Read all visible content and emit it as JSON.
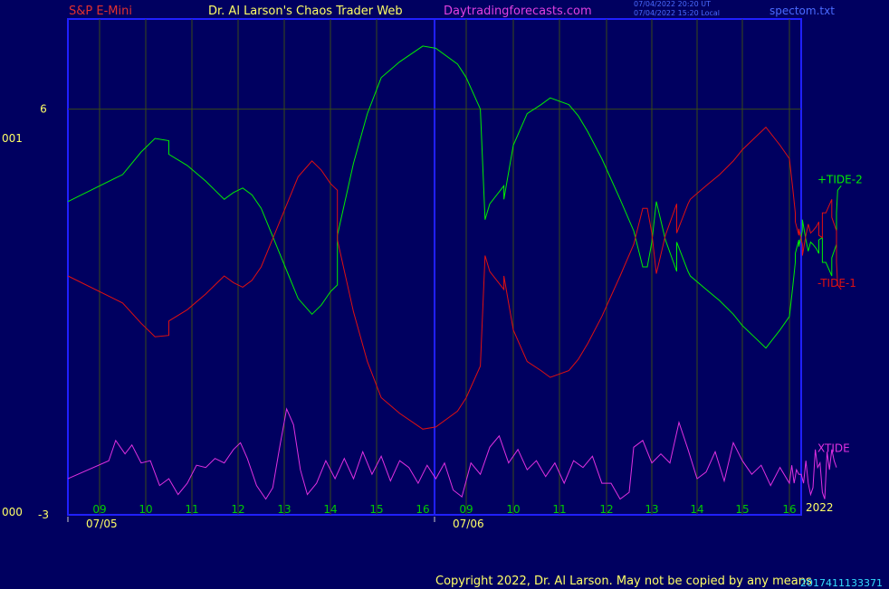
{
  "header": {
    "instrument": "S&P E-Mini",
    "author": "Dr. Al Larson's Chaos Trader Web",
    "site": "Daytradingforecasts.com",
    "time_ut": "07/04/2022 20:20 UT",
    "time_local": "07/04/2022 15:20 Local",
    "filename": "spectom.txt"
  },
  "left_axis": {
    "top_label": "001",
    "bottom_label": "000"
  },
  "footer": {
    "copyright": "Copyright 2022, Dr. Al Larson. May not be copied by any means",
    "garbled": "2017411133371"
  },
  "colors": {
    "background": "#000060",
    "frame": "#2020ff",
    "tide_plus": "#00ee00",
    "tide_minus": "#e01010",
    "xtide": "#e030e0",
    "hour_labels": "#00cc00",
    "text_yellow": "#ffff66"
  },
  "chart_data": {
    "type": "line",
    "ylim": [
      -3,
      8
    ],
    "yticks": [
      6,
      -3
    ],
    "year_label": "2022",
    "date_labels": [
      "07/05",
      "07/06"
    ],
    "hour_labels": [
      "09",
      "10",
      "11",
      "12",
      "13",
      "14",
      "15",
      "16",
      "09",
      "10",
      "11",
      "12",
      "13",
      "14",
      "15",
      "16"
    ],
    "series": [
      {
        "name": "+TIDE-2",
        "points": [
          [
            0,
            3.95
          ],
          [
            0.5,
            4.55
          ],
          [
            0.9,
            5.05
          ],
          [
            1.2,
            5.35
          ],
          [
            1.5,
            5.3
          ],
          [
            1.5,
            5
          ],
          [
            1.9,
            4.75
          ],
          [
            2.3,
            4.4
          ],
          [
            2.5,
            4.2
          ],
          [
            2.7,
            4
          ],
          [
            2.9,
            4.15
          ],
          [
            3.1,
            4.25
          ],
          [
            3.3,
            4.1
          ],
          [
            3.5,
            3.8
          ],
          [
            3.7,
            3.3
          ],
          [
            3.9,
            2.8
          ],
          [
            4.1,
            2.3
          ],
          [
            4.3,
            1.8
          ],
          [
            4.6,
            1.45
          ],
          [
            4.8,
            1.65
          ],
          [
            5.0,
            1.95
          ],
          [
            5.15,
            2.1
          ],
          [
            5.15,
            3.2
          ],
          [
            5.5,
            4.8
          ],
          [
            5.8,
            5.9
          ],
          [
            6.1,
            6.7
          ],
          [
            6.5,
            7.05
          ],
          [
            7.0,
            7.4
          ],
          [
            7.3,
            7.35
          ],
          [
            7.8,
            7
          ],
          [
            8.0,
            6.7
          ],
          [
            8.3,
            6
          ],
          [
            8.4,
            3.55
          ],
          [
            8.5,
            3.9
          ],
          [
            8.8,
            4.3
          ],
          [
            8.8,
            4
          ],
          [
            9.0,
            5.2
          ],
          [
            9.3,
            5.9
          ],
          [
            9.6,
            6.1
          ],
          [
            9.8,
            6.25
          ],
          [
            10.2,
            6.1
          ],
          [
            10.4,
            5.85
          ],
          [
            10.6,
            5.5
          ],
          [
            10.9,
            4.9
          ],
          [
            11.3,
            4
          ],
          [
            11.6,
            3.3
          ],
          [
            11.8,
            2.5
          ],
          [
            11.9,
            2.5
          ],
          [
            12.0,
            3.05
          ],
          [
            12.1,
            3.95
          ],
          [
            12.3,
            3.1
          ],
          [
            12.55,
            2.4
          ],
          [
            12.55,
            3.05
          ],
          [
            12.8,
            2.4
          ],
          [
            12.85,
            2.3
          ],
          [
            13.2,
            2.0
          ],
          [
            13.5,
            1.75
          ],
          [
            13.8,
            1.45
          ],
          [
            14.0,
            1.2
          ],
          [
            14.3,
            0.9
          ],
          [
            14.5,
            0.7
          ],
          [
            14.8,
            1.1
          ],
          [
            15.0,
            1.4
          ],
          [
            15.3,
            2.1
          ],
          [
            15.5,
            2.6
          ],
          [
            15.5,
            2.8
          ],
          [
            15.8,
            3.1
          ],
          [
            15.8,
            2.95
          ],
          [
            16.1,
            3.3
          ],
          [
            16.1,
            3.55
          ],
          [
            16.4,
            3.1
          ],
          [
            16.6,
            2.85
          ],
          [
            16.8,
            3.05
          ],
          [
            17.0,
            3.0
          ],
          [
            17.3,
            2.9
          ],
          [
            17.5,
            2.8
          ],
          [
            17.5,
            3.1
          ],
          [
            17.8,
            3.15
          ],
          [
            17.8,
            2.6
          ],
          [
            18.1,
            2.6
          ],
          [
            18.6,
            2.3
          ],
          [
            18.6,
            2.7
          ],
          [
            19.0,
            3.0
          ],
          [
            19.0,
            3.7
          ],
          [
            19.1,
            4.2
          ],
          [
            19.4,
            4.3
          ]
        ]
      },
      {
        "name": "-TIDE-1",
        "points": [
          [
            0,
            2.3
          ],
          [
            0.5,
            1.7
          ],
          [
            0.9,
            1.25
          ],
          [
            1.2,
            0.95
          ],
          [
            1.5,
            0.98
          ],
          [
            1.5,
            1.3
          ],
          [
            1.9,
            1.55
          ],
          [
            2.3,
            1.9
          ],
          [
            2.5,
            2.1
          ],
          [
            2.7,
            2.3
          ],
          [
            2.9,
            2.15
          ],
          [
            3.1,
            2.05
          ],
          [
            3.3,
            2.2
          ],
          [
            3.5,
            2.5
          ],
          [
            3.7,
            3.0
          ],
          [
            3.9,
            3.5
          ],
          [
            4.1,
            4.0
          ],
          [
            4.3,
            4.5
          ],
          [
            4.6,
            4.85
          ],
          [
            4.8,
            4.65
          ],
          [
            5.0,
            4.35
          ],
          [
            5.15,
            4.2
          ],
          [
            5.15,
            3.1
          ],
          [
            5.5,
            1.5
          ],
          [
            5.8,
            0.4
          ],
          [
            6.1,
            -0.4
          ],
          [
            6.5,
            -0.75
          ],
          [
            7.0,
            -1.1
          ],
          [
            7.3,
            -1.05
          ],
          [
            7.8,
            -0.7
          ],
          [
            8.0,
            -0.4
          ],
          [
            8.3,
            0.3
          ],
          [
            8.4,
            2.75
          ],
          [
            8.5,
            2.4
          ],
          [
            8.8,
            2.0
          ],
          [
            8.8,
            2.3
          ],
          [
            9.0,
            1.1
          ],
          [
            9.3,
            0.4
          ],
          [
            9.6,
            0.2
          ],
          [
            9.8,
            0.05
          ],
          [
            10.2,
            0.2
          ],
          [
            10.4,
            0.45
          ],
          [
            10.6,
            0.8
          ],
          [
            10.9,
            1.4
          ],
          [
            11.3,
            2.3
          ],
          [
            11.6,
            3.0
          ],
          [
            11.8,
            3.8
          ],
          [
            11.9,
            3.8
          ],
          [
            12.0,
            3.25
          ],
          [
            12.1,
            2.35
          ],
          [
            12.3,
            3.2
          ],
          [
            12.55,
            3.9
          ],
          [
            12.55,
            3.25
          ],
          [
            12.8,
            3.9
          ],
          [
            12.85,
            4.0
          ],
          [
            13.2,
            4.3
          ],
          [
            13.5,
            4.55
          ],
          [
            13.8,
            4.85
          ],
          [
            14.0,
            5.1
          ],
          [
            14.3,
            5.4
          ],
          [
            14.5,
            5.6
          ],
          [
            14.8,
            5.2
          ],
          [
            15.0,
            4.9
          ],
          [
            15.3,
            4.2
          ],
          [
            15.5,
            3.7
          ],
          [
            15.5,
            3.5
          ],
          [
            15.8,
            3.2
          ],
          [
            15.8,
            3.35
          ],
          [
            16.1,
            3.0
          ],
          [
            16.1,
            2.75
          ],
          [
            16.4,
            3.2
          ],
          [
            16.6,
            3.45
          ],
          [
            16.8,
            3.25
          ],
          [
            17.0,
            3.3
          ],
          [
            17.3,
            3.4
          ],
          [
            17.5,
            3.5
          ],
          [
            17.5,
            3.2
          ],
          [
            17.8,
            3.15
          ],
          [
            17.8,
            3.7
          ],
          [
            18.1,
            3.7
          ],
          [
            18.6,
            4.0
          ],
          [
            18.6,
            3.6
          ],
          [
            19.0,
            3.3
          ],
          [
            19.0,
            2.6
          ],
          [
            19.1,
            2.1
          ],
          [
            19.4,
            2.0
          ]
        ]
      },
      {
        "name": "XTIDE",
        "points": [
          [
            0,
            -2.2
          ],
          [
            0.2,
            -1.8
          ],
          [
            0.35,
            -1.35
          ],
          [
            0.55,
            -1.65
          ],
          [
            0.7,
            -1.45
          ],
          [
            0.9,
            -1.85
          ],
          [
            1.1,
            -1.8
          ],
          [
            1.3,
            -2.35
          ],
          [
            1.5,
            -2.2
          ],
          [
            1.7,
            -2.55
          ],
          [
            1.9,
            -2.3
          ],
          [
            2.1,
            -1.9
          ],
          [
            2.3,
            -1.95
          ],
          [
            2.5,
            -1.75
          ],
          [
            2.7,
            -1.85
          ],
          [
            2.9,
            -1.55
          ],
          [
            3.05,
            -1.4
          ],
          [
            3.2,
            -1.75
          ],
          [
            3.4,
            -2.35
          ],
          [
            3.6,
            -2.65
          ],
          [
            3.75,
            -2.4
          ],
          [
            3.9,
            -1.5
          ],
          [
            4.05,
            -0.65
          ],
          [
            4.2,
            -1.0
          ],
          [
            4.35,
            -2.0
          ],
          [
            4.5,
            -2.55
          ],
          [
            4.7,
            -2.3
          ],
          [
            4.9,
            -1.8
          ],
          [
            5.1,
            -2.2
          ],
          [
            5.3,
            -1.75
          ],
          [
            5.5,
            -2.2
          ],
          [
            5.7,
            -1.6
          ],
          [
            5.9,
            -2.1
          ],
          [
            6.1,
            -1.7
          ],
          [
            6.3,
            -2.25
          ],
          [
            6.5,
            -1.8
          ],
          [
            6.7,
            -1.95
          ],
          [
            6.9,
            -2.3
          ],
          [
            7.1,
            -1.9
          ],
          [
            7.3,
            -2.2
          ],
          [
            7.5,
            -1.85
          ],
          [
            7.7,
            -2.45
          ],
          [
            7.9,
            -2.6
          ],
          [
            8.1,
            -1.85
          ],
          [
            8.3,
            -2.1
          ],
          [
            8.5,
            -1.5
          ],
          [
            8.7,
            -1.25
          ],
          [
            8.9,
            -1.85
          ],
          [
            9.1,
            -1.55
          ],
          [
            9.3,
            -2.0
          ],
          [
            9.5,
            -1.8
          ],
          [
            9.7,
            -2.15
          ],
          [
            9.9,
            -1.85
          ],
          [
            10.1,
            -2.3
          ],
          [
            10.3,
            -1.8
          ],
          [
            10.5,
            -1.95
          ],
          [
            10.7,
            -1.7
          ],
          [
            10.9,
            -2.3
          ],
          [
            11.1,
            -2.3
          ],
          [
            11.3,
            -2.65
          ],
          [
            11.5,
            -2.5
          ],
          [
            11.6,
            -1.5
          ],
          [
            11.8,
            -1.35
          ],
          [
            12.0,
            -1.85
          ],
          [
            12.2,
            -1.65
          ],
          [
            12.4,
            -1.85
          ],
          [
            12.6,
            -0.95
          ],
          [
            12.8,
            -1.55
          ],
          [
            13.0,
            -2.2
          ],
          [
            13.2,
            -2.05
          ],
          [
            13.4,
            -1.6
          ],
          [
            13.6,
            -2.25
          ],
          [
            13.8,
            -1.4
          ],
          [
            14.0,
            -1.8
          ],
          [
            14.2,
            -2.1
          ],
          [
            14.4,
            -1.9
          ],
          [
            14.6,
            -2.35
          ],
          [
            14.8,
            -1.95
          ],
          [
            15.0,
            -2.3
          ],
          [
            15.2,
            -1.9
          ],
          [
            15.4,
            -2.3
          ],
          [
            15.6,
            -2.0
          ],
          [
            15.8,
            -2.1
          ],
          [
            16.0,
            -2.1
          ],
          [
            16.2,
            -2.3
          ],
          [
            16.4,
            -1.8
          ],
          [
            16.6,
            -2.3
          ],
          [
            16.8,
            -2.55
          ],
          [
            17.0,
            -2.4
          ],
          [
            17.2,
            -1.55
          ],
          [
            17.4,
            -1.95
          ],
          [
            17.6,
            -1.85
          ],
          [
            17.8,
            -2.5
          ],
          [
            18.0,
            -2.65
          ],
          [
            18.2,
            -1.6
          ],
          [
            18.4,
            -2.0
          ],
          [
            18.6,
            -1.55
          ],
          [
            18.8,
            -1.8
          ],
          [
            19.0,
            -1.95
          ]
        ]
      }
    ]
  }
}
